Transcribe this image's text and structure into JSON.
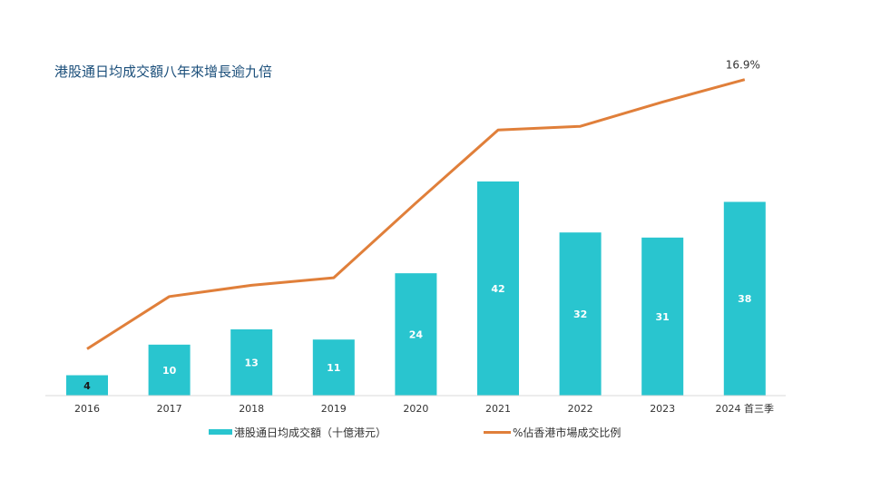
{
  "chart_data": {
    "type": "bar",
    "title": "港股通日均成交額八年來增長逾九倍",
    "categories": [
      "2016",
      "2017",
      "2018",
      "2019",
      "2020",
      "2021",
      "2022",
      "2023",
      "2024 首三季"
    ],
    "series": [
      {
        "name": "港股通日均成交額（十億港元）",
        "kind": "bar",
        "color": "#29c5cf",
        "values": [
          4,
          10,
          13,
          11,
          24,
          42,
          32,
          31,
          38
        ],
        "labels": [
          "4",
          "10",
          "13",
          "11",
          "24",
          "42",
          "32",
          "31",
          "38"
        ]
      },
      {
        "name": "%佔香港市場成交比例",
        "kind": "line",
        "color": "#e07f3a",
        "values": [
          2.5,
          5.3,
          5.9,
          6.3,
          10.3,
          14.2,
          14.4,
          15.7,
          16.9
        ]
      }
    ],
    "annotation": "16.9%",
    "bar_ylim": [
      0,
      42
    ],
    "line_ylim": [
      0,
      18
    ],
    "xlabel": "",
    "ylabel": "",
    "grid": false,
    "legend_position": "bottom"
  }
}
